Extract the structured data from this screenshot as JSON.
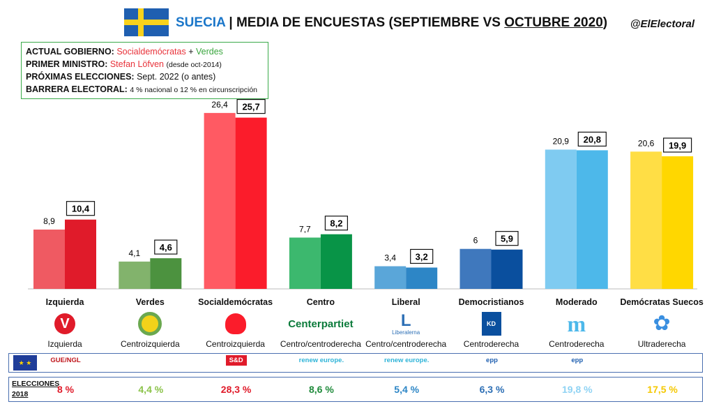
{
  "header": {
    "country": "SUECIA",
    "separator": "|",
    "title_prefix": "MEDIA DE ENCUESTAS (SEPTIEMBRE VS ",
    "title_underlined": "OCTUBRE 2020",
    "title_suffix": ")",
    "handle": "@ElElectoral"
  },
  "info": {
    "gov_key": "ACTUAL GOBIERNO:",
    "gov_party1": "Socialdemócratas",
    "gov_plus": "+",
    "gov_party2": "Verdes",
    "pm_key": "PRIMER MINISTRO:",
    "pm_name": "Stefan Löfven",
    "pm_since": "(desde oct-2014)",
    "next_key": "PRÓXIMAS ELECCIONES:",
    "next_val": "Sept. 2022 (o antes)",
    "barrier_key": "BARRERA ELECTORAL:",
    "barrier_val": "4 % nacional o 12 % en circunscripción"
  },
  "chart_data": {
    "type": "bar",
    "categories": [
      "Izquierda",
      "Verdes",
      "Socialdemócratas",
      "Centro",
      "Liberal",
      "Democristianos",
      "Moderado",
      "Demócratas Suecos"
    ],
    "series": [
      {
        "values": [
          8.9,
          4.1,
          26.4,
          7.7,
          3.4,
          6,
          20.9,
          20.6
        ]
      },
      {
        "values": [
          10.4,
          4.6,
          25.7,
          8.2,
          3.2,
          5.9,
          20.8,
          19.9
        ]
      }
    ],
    "value_labels_sept": [
      "8,9",
      "4,1",
      "26,4",
      "7,7",
      "3,4",
      "6",
      "20,9",
      "20,6"
    ],
    "value_labels_oct": [
      "10,4",
      "4,6",
      "25,7",
      "8,2",
      "3,2",
      "5,9",
      "20,8",
      "19,9"
    ],
    "colors_sept": [
      "#ef5a62",
      "#82b36c",
      "#ff5a63",
      "#3cb86e",
      "#5aa6d9",
      "#3f78bd",
      "#7fcbf1",
      "#ffde45"
    ],
    "colors_oct": [
      "#e01b2a",
      "#4c923f",
      "#fb1c2b",
      "#089447",
      "#2d86c6",
      "#0a4f9e",
      "#4db8ea",
      "#ffd700"
    ],
    "ylim": [
      0,
      30
    ]
  },
  "parties": [
    {
      "name": "Izquierda",
      "ideology": "Izquierda",
      "logo_icon": "v-rose-icon",
      "logo_text": "V",
      "group": "GUE/NGL",
      "result": "8 %",
      "result_color": "#e01b2a"
    },
    {
      "name": "Verdes",
      "ideology": "Centroizquierda",
      "logo_icon": "sunflower-icon",
      "logo_text": "",
      "group": "",
      "result": "4,4 %",
      "result_color": "#8bc34a"
    },
    {
      "name": "Socialdemócratas",
      "ideology": "Centroizquierda",
      "logo_icon": "rose-icon",
      "logo_text": "",
      "group": "S&D",
      "result": "28,3 %",
      "result_color": "#e01b2a"
    },
    {
      "name": "Centro",
      "ideology": "Centro/centroderecha",
      "logo_icon": "clover-icon",
      "logo_text": "Centerpartiet",
      "group": "renew europe.",
      "result": "8,6 %",
      "result_color": "#1e8a3a"
    },
    {
      "name": "Liberal",
      "ideology": "Centro/centroderecha",
      "logo_icon": "l-icon",
      "logo_text": "Liberalerna",
      "group": "renew europe.",
      "result": "5,4 %",
      "result_color": "#2d86c6"
    },
    {
      "name": "Democristianos",
      "ideology": "Centroderecha",
      "logo_icon": "kd-icon",
      "logo_text": "KD",
      "group": "epp",
      "result": "6,3 %",
      "result_color": "#2d6fb5"
    },
    {
      "name": "Moderado",
      "ideology": "Centroderecha",
      "logo_icon": "m-icon",
      "logo_text": "m",
      "group": "epp",
      "result": "19,8 %",
      "result_color": "#8fd3f4"
    },
    {
      "name": "Demócratas Suecos",
      "ideology": "Ultraderecha",
      "logo_icon": "anemone-icon",
      "logo_text": "",
      "group": "",
      "result": "17,5 %",
      "result_color": "#f5c800"
    }
  ],
  "results_label_1": "ELECCIONES",
  "results_label_2": "2018"
}
